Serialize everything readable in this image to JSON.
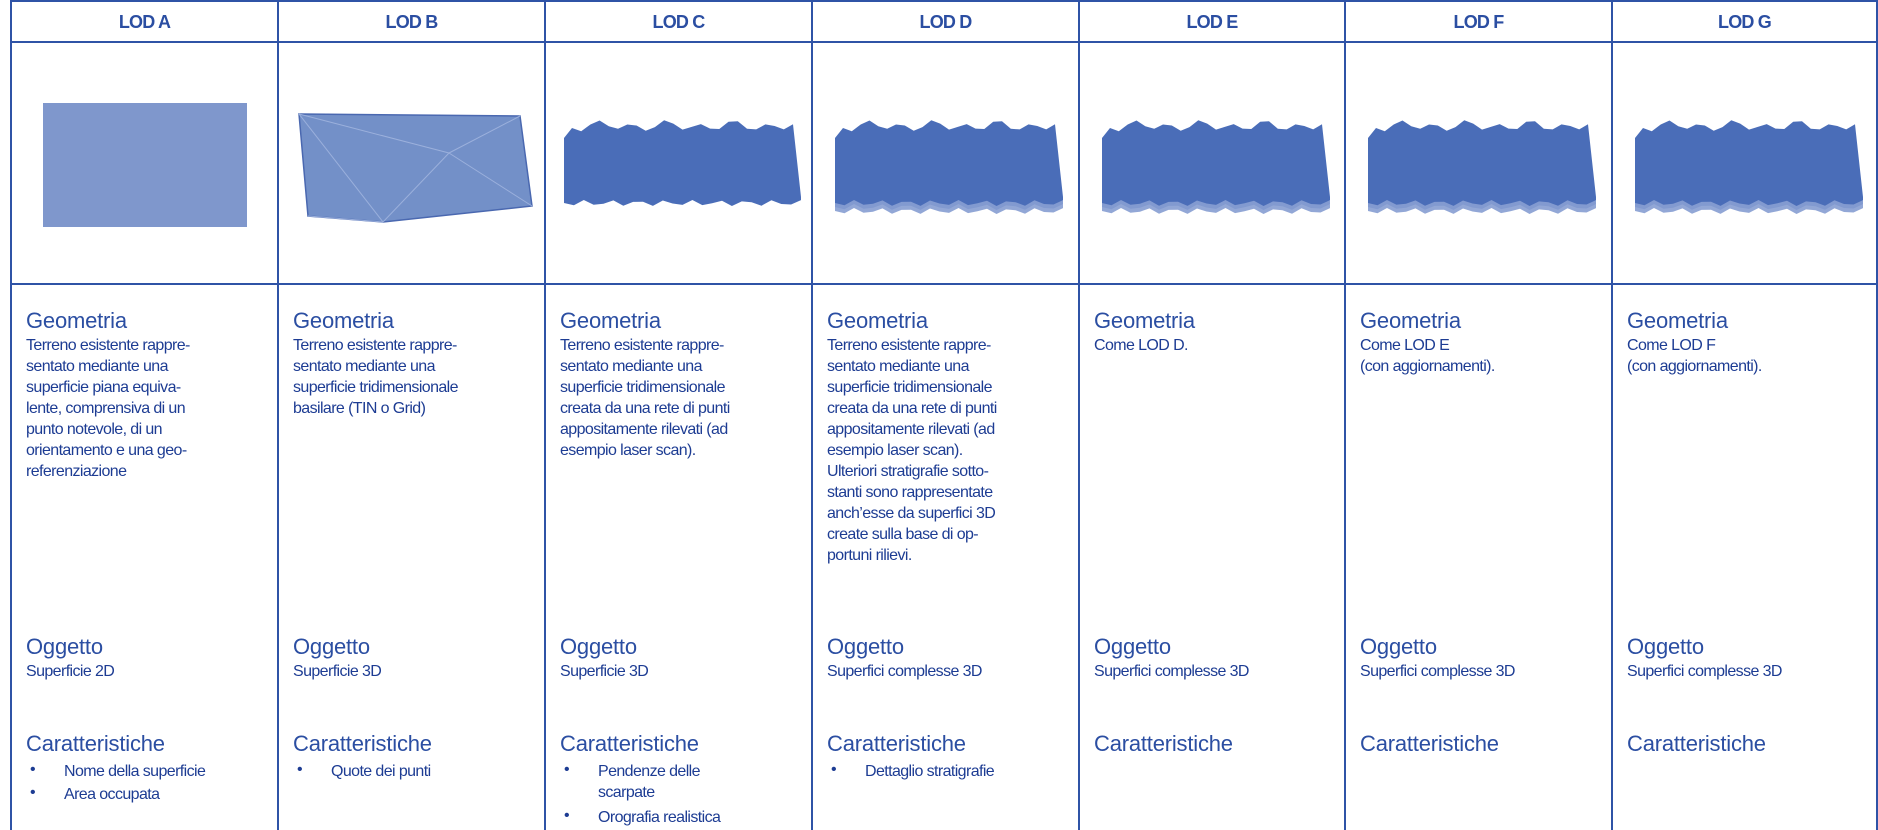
{
  "columns": [
    {
      "header": "LOD A",
      "geometry": {
        "title": "Geometria",
        "lines": [
          "Terreno esistente rappre-",
          "sentato mediante una",
          "superficie piana equiva-",
          "lente, comprensiva di un",
          "punto notevole, di un",
          "orientamento e una geo-",
          "referenziazione"
        ]
      },
      "object": {
        "title": "Oggetto",
        "text": "Superficie 2D"
      },
      "features": {
        "title": "Caratteristiche",
        "items": [
          [
            "Nome della superficie"
          ],
          [
            "Area occupata"
          ]
        ]
      }
    },
    {
      "header": "LOD B",
      "geometry": {
        "title": "Geometria",
        "lines": [
          "Terreno esistente rappre-",
          "sentato mediante una",
          "superficie tridimensionale",
          "basilare (TIN o Grid)"
        ]
      },
      "object": {
        "title": "Oggetto",
        "text": "Superficie 3D"
      },
      "features": {
        "title": "Caratteristiche",
        "items": [
          [
            "Quote dei punti"
          ]
        ]
      }
    },
    {
      "header": "LOD C",
      "geometry": {
        "title": "Geometria",
        "lines": [
          "Terreno esistente rappre-",
          "sentato mediante una",
          "superficie tridimensionale",
          "creata da una rete di punti",
          "appositamente rilevati (ad",
          "esempio laser scan)."
        ]
      },
      "object": {
        "title": "Oggetto",
        "text": "Superficie 3D"
      },
      "features": {
        "title": "Caratteristiche",
        "items": [
          [
            "Pendenze delle",
            "scarpate"
          ],
          [
            "Orografia realistica"
          ]
        ]
      }
    },
    {
      "header": "LOD D",
      "geometry": {
        "title": "Geometria",
        "lines": [
          "Terreno esistente rappre-",
          "sentato mediante una",
          "superficie tridimensionale",
          "creata da una rete di punti",
          "appositamente rilevati (ad",
          "esempio laser scan).",
          "Ulteriori stratigrafie sotto-",
          "stanti sono rappresentate",
          "anch’esse da superfici 3D",
          "create sulla base di op-",
          "portuni rilievi."
        ]
      },
      "object": {
        "title": "Oggetto",
        "text": "Superfici complesse 3D"
      },
      "features": {
        "title": "Caratteristiche",
        "items": [
          [
            "Dettaglio stratigrafie"
          ]
        ]
      }
    },
    {
      "header": "LOD E",
      "geometry": {
        "title": "Geometria",
        "lines": [
          "Come LOD D."
        ]
      },
      "object": {
        "title": "Oggetto",
        "text": "Superfici complesse 3D"
      },
      "features": {
        "title": "Caratteristiche",
        "items": []
      }
    },
    {
      "header": "LOD F",
      "geometry": {
        "title": "Geometria",
        "lines": [
          "Come LOD E",
          "(con aggiornamenti)."
        ]
      },
      "object": {
        "title": "Oggetto",
        "text": "Superfici complesse 3D"
      },
      "features": {
        "title": "Caratteristiche",
        "items": []
      }
    },
    {
      "header": "LOD G",
      "geometry": {
        "title": "Geometria",
        "lines": [
          "Come LOD F",
          "(con aggiornamenti)."
        ]
      },
      "object": {
        "title": "Oggetto",
        "text": "Superfici complesse 3D"
      },
      "features": {
        "title": "Caratteristiche",
        "items": []
      }
    }
  ]
}
